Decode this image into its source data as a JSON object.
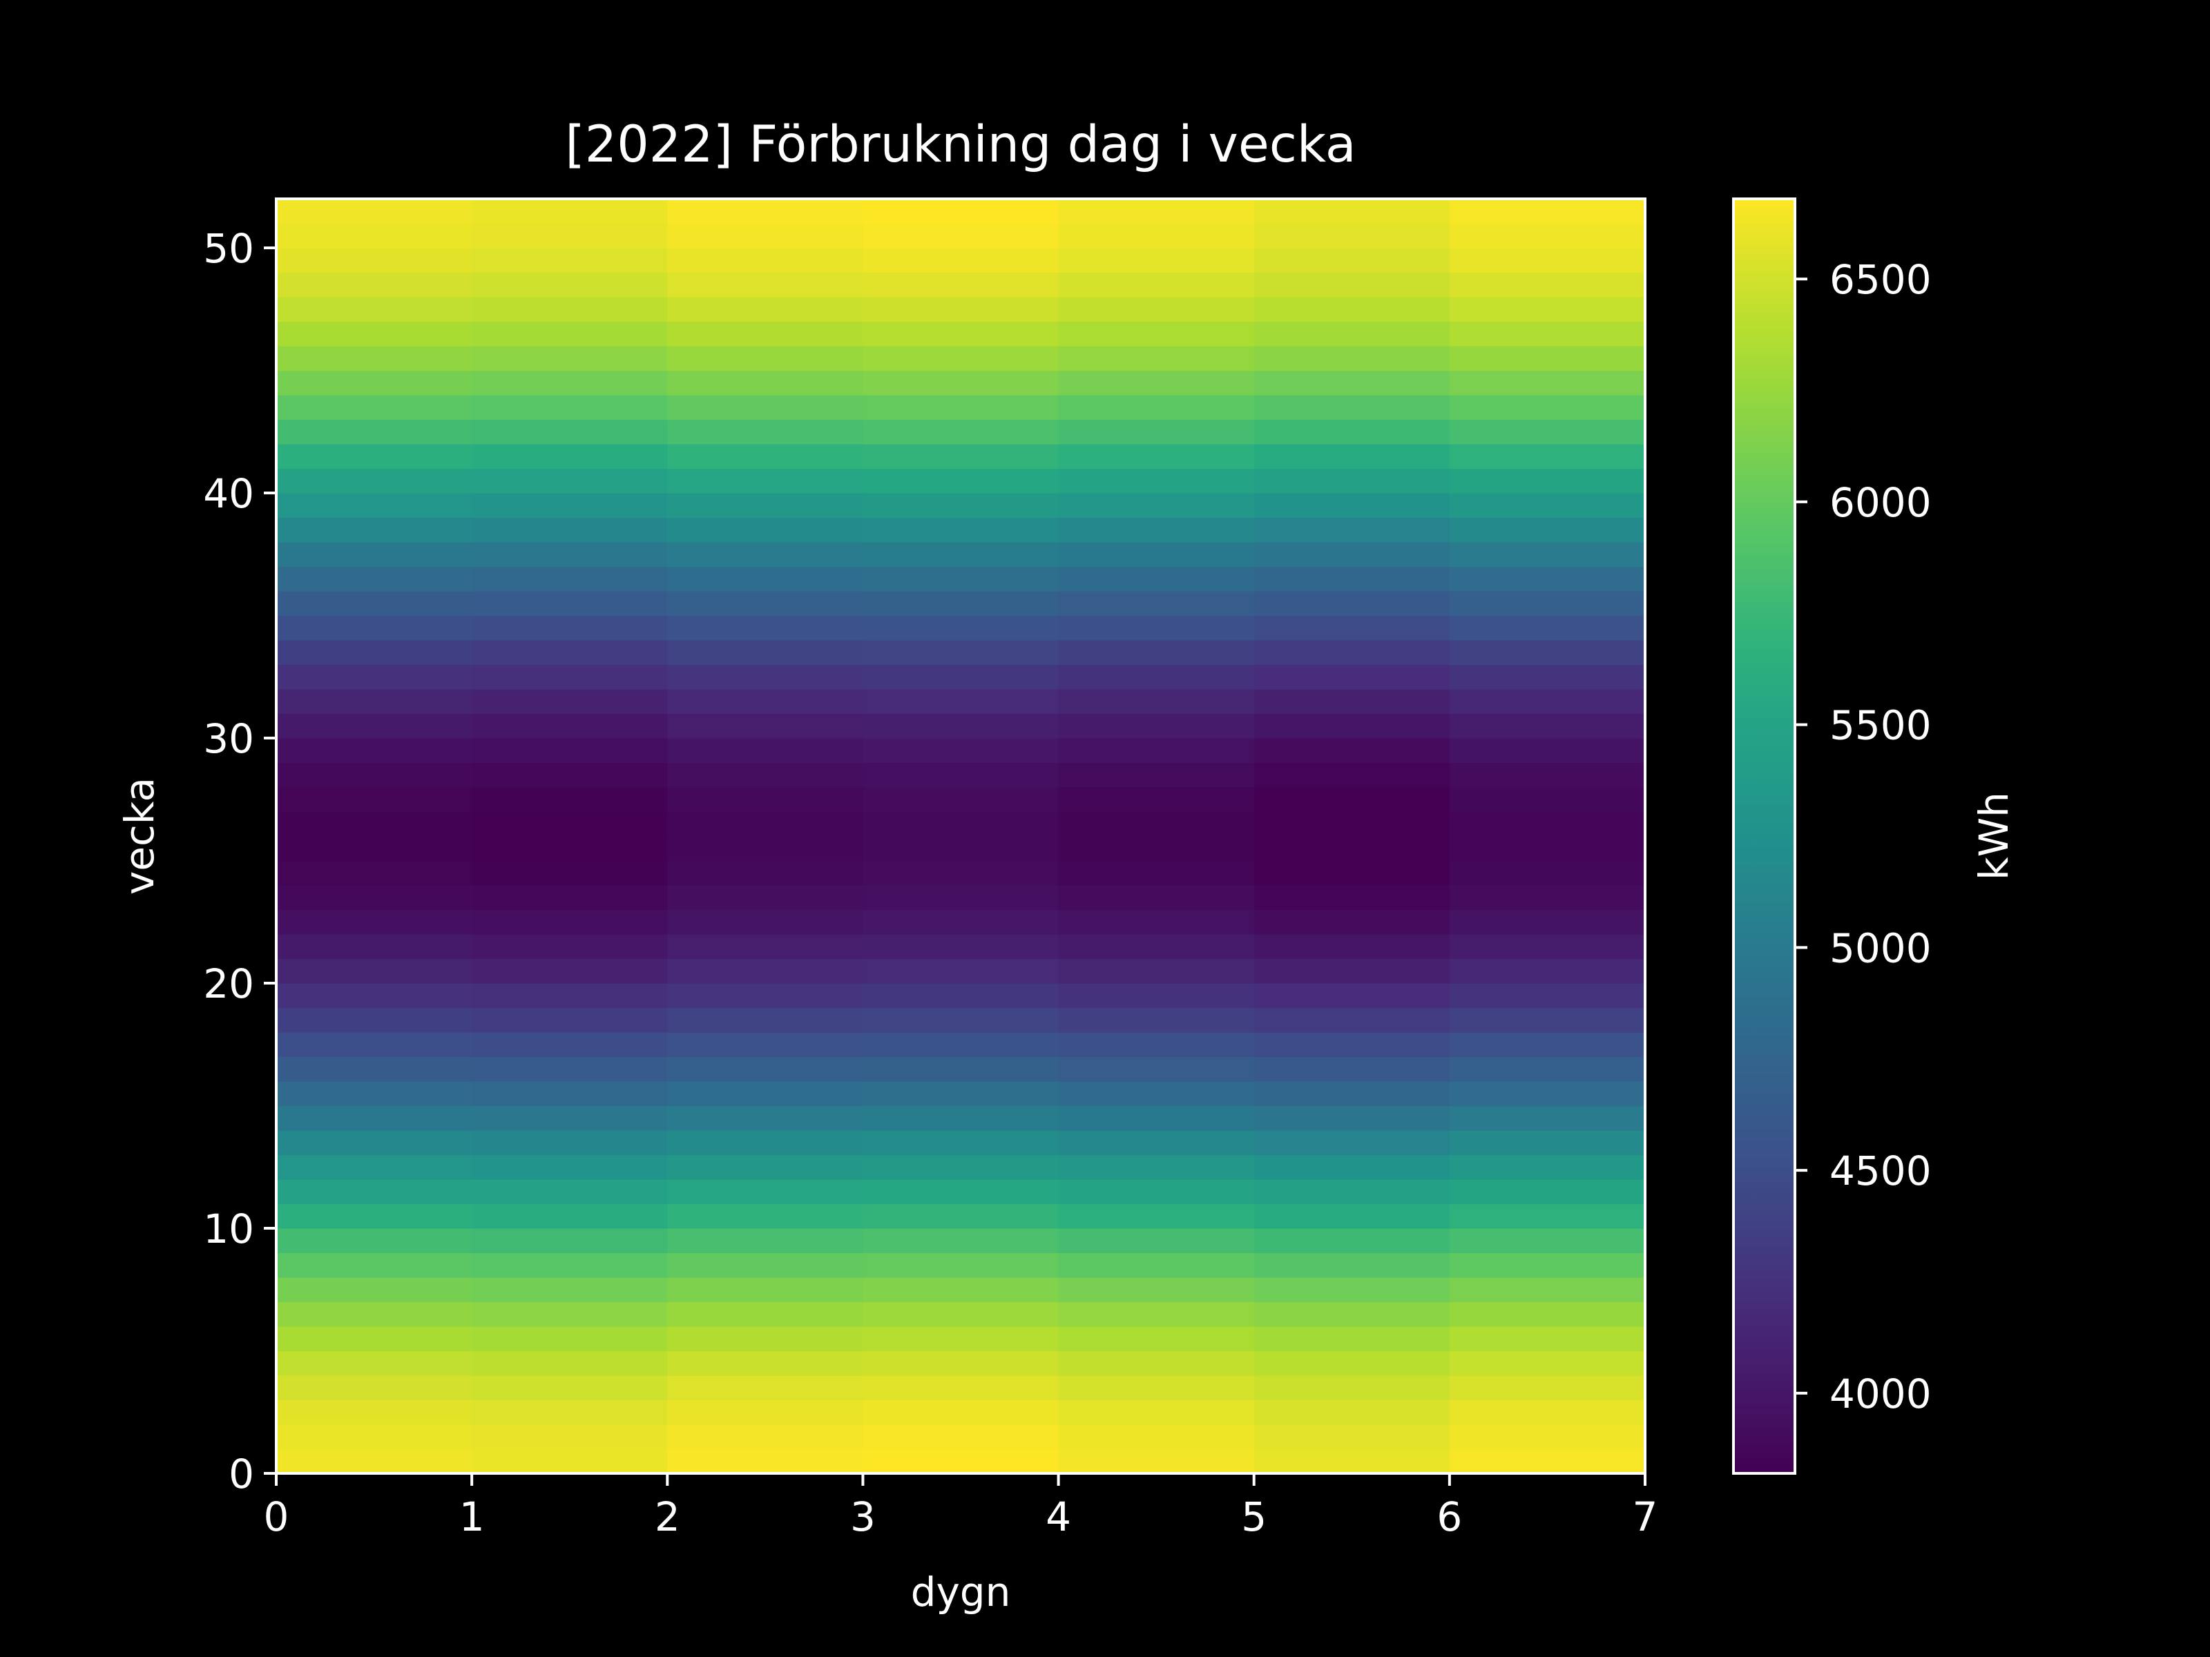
{
  "chart_data": {
    "type": "heatmap",
    "title": "[2022] Förbrukning dag i vecka",
    "xlabel": "dygn",
    "ylabel": "vecka",
    "colorbar_label": "kWh",
    "colormap": "viridis",
    "xlim": [
      0,
      7
    ],
    "ylim": [
      0,
      52
    ],
    "x_ticks": [
      0,
      1,
      2,
      3,
      4,
      5,
      6,
      7
    ],
    "y_ticks": [
      0,
      10,
      20,
      30,
      40,
      50
    ],
    "x_tick_labels": [
      "0",
      "1",
      "2",
      "3",
      "4",
      "5",
      "6",
      "7"
    ],
    "y_tick_labels": [
      "0",
      "10",
      "20",
      "30",
      "40",
      "50"
    ],
    "color_range": [
      3820,
      6680
    ],
    "colorbar_ticks": [
      4000,
      4500,
      5000,
      5500,
      6000,
      6500
    ],
    "colorbar_tick_labels": [
      "4000",
      "4500",
      "5000",
      "5500",
      "6000",
      "6500"
    ],
    "days": 7,
    "weeks": 52,
    "baseline_kwh": 5230,
    "amplitude_kwh": 1400,
    "peak_week_offset": 0.5,
    "day_offsets_kwh": [
      0,
      -20,
      35,
      55,
      10,
      -35,
      25
    ],
    "grid": false,
    "background": "#000000",
    "foreground": "#ffffff"
  }
}
